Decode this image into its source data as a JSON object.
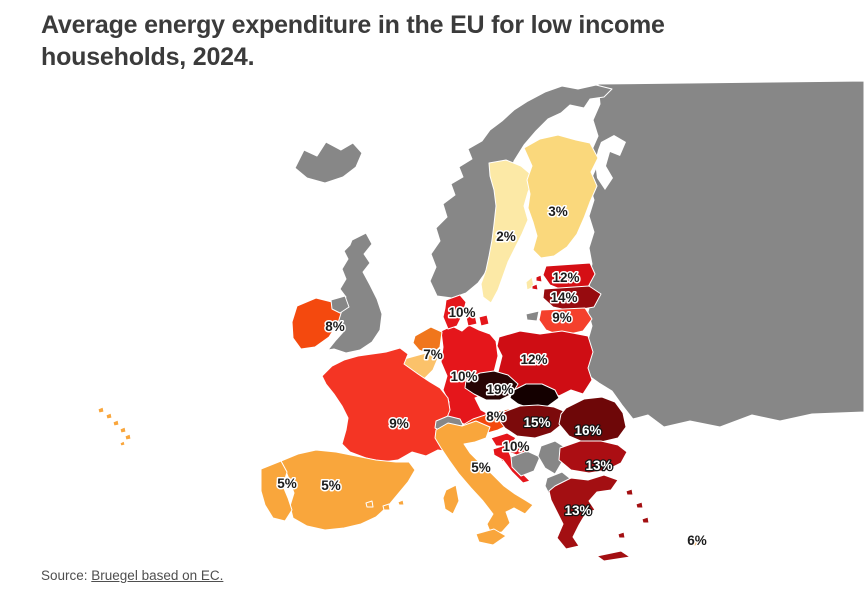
{
  "title": {
    "text": "Average energy expenditure in the EU for low income households, 2024.",
    "color": "#3b3b3b"
  },
  "source": {
    "prefix": "Source: ",
    "link_text": "Bruegel based on EC."
  },
  "chart_data": {
    "type": "heatmap",
    "subtype": "choropleth map of Europe",
    "title": "Average energy expenditure in the EU for low income households, 2024.",
    "unit": "% of income",
    "series": [
      {
        "country": "Sweden",
        "value": 2
      },
      {
        "country": "Finland",
        "value": 3
      },
      {
        "country": "Portugal",
        "value": 5
      },
      {
        "country": "Spain",
        "value": 5
      },
      {
        "country": "Italy",
        "value": 5
      },
      {
        "country": "Cyprus",
        "value": 6
      },
      {
        "country": "Netherlands",
        "value": 7
      },
      {
        "country": "Ireland",
        "value": 8
      },
      {
        "country": "Austria",
        "value": 8
      },
      {
        "country": "France",
        "value": 9
      },
      {
        "country": "Lithuania",
        "value": 9
      },
      {
        "country": "Denmark",
        "value": 10
      },
      {
        "country": "Germany",
        "value": 10
      },
      {
        "country": "Croatia",
        "value": 10
      },
      {
        "country": "Estonia",
        "value": 12
      },
      {
        "country": "Poland",
        "value": 12
      },
      {
        "country": "Bulgaria",
        "value": 13
      },
      {
        "country": "Greece",
        "value": 13
      },
      {
        "country": "Latvia",
        "value": 14
      },
      {
        "country": "Hungary",
        "value": 15
      },
      {
        "country": "Romania",
        "value": 16
      },
      {
        "country": "Czechia",
        "value": 19
      }
    ],
    "shaded_but_unlabeled": [
      "Belgium",
      "Slovakia",
      "Slovenia"
    ],
    "no_data_color": "#878787",
    "color_scale_low_to_high": [
      "#FCE9A6",
      "#FAD87C",
      "#F9A63C",
      "#F79A30",
      "#FBC26A",
      "#F0761C",
      "#F4490E",
      "#F43524",
      "#E5161B",
      "#CF0D14",
      "#AB0E13",
      "#970B0F",
      "#7C0A0B",
      "#6E0708",
      "#270404",
      "#140000"
    ],
    "legend": "none shown"
  },
  "map": {
    "border_color": "#ffffff",
    "countries": [
      {
        "id": "east",
        "name": "Russia / Belarus / Ukraine / Moldova (no data)",
        "fill": "#878787",
        "label": "",
        "label_style": ""
      },
      {
        "id": "whitesea",
        "name": "White Sea",
        "fill": "#ffffff",
        "label": "",
        "label_style": ""
      },
      {
        "id": "iceland",
        "name": "Iceland (no data)",
        "fill": "#878787",
        "label": "",
        "label_style": ""
      },
      {
        "id": "norway",
        "name": "Norway (no data)",
        "fill": "#878787",
        "label": "",
        "label_style": ""
      },
      {
        "id": "uk",
        "name": "United Kingdom (no data)",
        "fill": "#878787",
        "label": "",
        "label_style": ""
      },
      {
        "id": "sweden",
        "name": "Sweden",
        "fill": "#FCE9A6",
        "label": "2%",
        "label_style": "dark"
      },
      {
        "id": "finland",
        "name": "Finland",
        "fill": "#FAD87C",
        "label": "3%",
        "label_style": "dark"
      },
      {
        "id": "estonia",
        "name": "Estonia",
        "fill": "#D50F15",
        "label": "12%",
        "label_style": "dark"
      },
      {
        "id": "latvia",
        "name": "Latvia",
        "fill": "#970B0F",
        "label": "14%",
        "label_style": "dark"
      },
      {
        "id": "lithuania",
        "name": "Lithuania",
        "fill": "#F4402C",
        "label": "9%",
        "label_style": "dark"
      },
      {
        "id": "kaliningrad",
        "name": "Kaliningrad (no data)",
        "fill": "#878787",
        "label": "",
        "label_style": ""
      },
      {
        "id": "poland",
        "name": "Poland",
        "fill": "#CF0D14",
        "label": "12%",
        "label_style": "dark"
      },
      {
        "id": "germany",
        "name": "Germany",
        "fill": "#E5161B",
        "label": "10%",
        "label_style": "dark"
      },
      {
        "id": "denmark",
        "name": "Denmark",
        "fill": "#E5161B",
        "label": "10%",
        "label_style": "dark"
      },
      {
        "id": "netherlands",
        "name": "Netherlands",
        "fill": "#F0761C",
        "label": "7%",
        "label_style": "dark"
      },
      {
        "id": "belgium",
        "name": "Belgium",
        "fill": "#FBC26A",
        "label": "",
        "label_style": ""
      },
      {
        "id": "ireland",
        "name": "Ireland",
        "fill": "#F4490E",
        "label": "8%",
        "label_style": "dark"
      },
      {
        "id": "nireland",
        "name": "Northern Ireland (no data)",
        "fill": "#878787",
        "label": "",
        "label_style": ""
      },
      {
        "id": "france",
        "name": "France",
        "fill": "#F43524",
        "label": "9%",
        "label_style": "dark"
      },
      {
        "id": "switzerland",
        "name": "Switzerland (no data)",
        "fill": "#878787",
        "label": "",
        "label_style": ""
      },
      {
        "id": "austria",
        "name": "Austria",
        "fill": "#F4490E",
        "label": "8%",
        "label_style": "dark"
      },
      {
        "id": "czechia",
        "name": "Czechia",
        "fill": "#270404",
        "label": "19%",
        "label_style": "dark"
      },
      {
        "id": "slovakia",
        "name": "Slovakia",
        "fill": "#140000",
        "label": "",
        "label_style": ""
      },
      {
        "id": "hungary",
        "name": "Hungary",
        "fill": "#7C0A0B",
        "label": "15%",
        "label_style": "light"
      },
      {
        "id": "slovenia",
        "name": "Slovenia",
        "fill": "#E5161B",
        "label": "",
        "label_style": ""
      },
      {
        "id": "croatia",
        "name": "Croatia",
        "fill": "#E5161B",
        "label": "10%",
        "label_style": "dark"
      },
      {
        "id": "bosnia",
        "name": "Bosnia and Herzegovina (no data)",
        "fill": "#878787",
        "label": "",
        "label_style": ""
      },
      {
        "id": "serbia",
        "name": "Serbia (no data)",
        "fill": "#878787",
        "label": "",
        "label_style": ""
      },
      {
        "id": "albania",
        "name": "Albania / N. Macedonia / Montenegro (no data)",
        "fill": "#878787",
        "label": "",
        "label_style": ""
      },
      {
        "id": "romania",
        "name": "Romania",
        "fill": "#6E0708",
        "label": "16%",
        "label_style": "light"
      },
      {
        "id": "bulgaria",
        "name": "Bulgaria",
        "fill": "#AB0E13",
        "label": "13%",
        "label_style": "light"
      },
      {
        "id": "greece",
        "name": "Greece",
        "fill": "#A30F12",
        "label": "13%",
        "label_style": "light"
      },
      {
        "id": "italy",
        "name": "Italy",
        "fill": "#F9A63C",
        "label": "5%",
        "label_style": "dark"
      },
      {
        "id": "spain",
        "name": "Spain",
        "fill": "#F9A63C",
        "label": "5%",
        "label_style": "dark"
      },
      {
        "id": "portugal",
        "name": "Portugal",
        "fill": "#F9A63C",
        "label": "5%",
        "label_style": "dark"
      },
      {
        "id": "cyprus",
        "name": "Cyprus",
        "fill": "#F79A30",
        "label": "6%",
        "label_style": "dark"
      }
    ]
  }
}
